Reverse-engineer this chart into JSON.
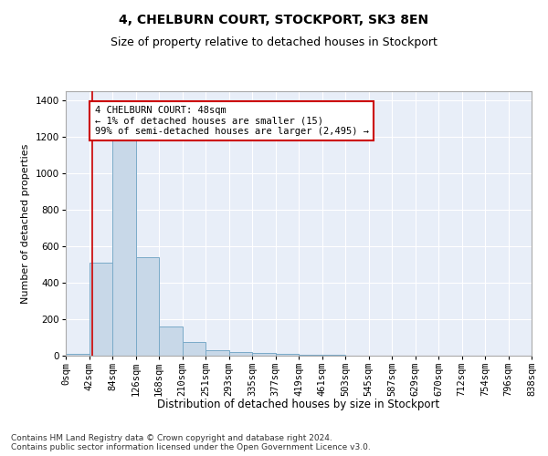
{
  "title": "4, CHELBURN COURT, STOCKPORT, SK3 8EN",
  "subtitle": "Size of property relative to detached houses in Stockport",
  "xlabel": "Distribution of detached houses by size in Stockport",
  "ylabel": "Number of detached properties",
  "bar_color": "#c8d8e8",
  "bar_edge_color": "#7aaac8",
  "background_color": "#e8eef8",
  "grid_color": "#ffffff",
  "annotation_line_color": "#cc0000",
  "annotation_box_edge": "#cc0000",
  "annotation_text": "4 CHELBURN COURT: 48sqm\n← 1% of detached houses are smaller (15)\n99% of semi-detached houses are larger (2,495) →",
  "footer_line1": "Contains HM Land Registry data © Crown copyright and database right 2024.",
  "footer_line2": "Contains public sector information licensed under the Open Government Licence v3.0.",
  "bin_labels": [
    "0sqm",
    "42sqm",
    "84sqm",
    "126sqm",
    "168sqm",
    "210sqm",
    "251sqm",
    "293sqm",
    "335sqm",
    "377sqm",
    "419sqm",
    "461sqm",
    "503sqm",
    "545sqm",
    "587sqm",
    "629sqm",
    "670sqm",
    "712sqm",
    "754sqm",
    "796sqm",
    "838sqm"
  ],
  "bar_heights": [
    8,
    510,
    1180,
    540,
    160,
    75,
    30,
    22,
    15,
    12,
    5,
    3,
    2,
    1,
    1,
    0,
    0,
    0,
    0,
    0
  ],
  "ylim": [
    0,
    1450
  ],
  "yticks": [
    0,
    200,
    400,
    600,
    800,
    1000,
    1200,
    1400
  ],
  "vline_x": 1.14,
  "title_fontsize": 10,
  "subtitle_fontsize": 9,
  "xlabel_fontsize": 8.5,
  "ylabel_fontsize": 8,
  "tick_fontsize": 7.5,
  "footer_fontsize": 6.5,
  "annotation_fontsize": 7.5
}
